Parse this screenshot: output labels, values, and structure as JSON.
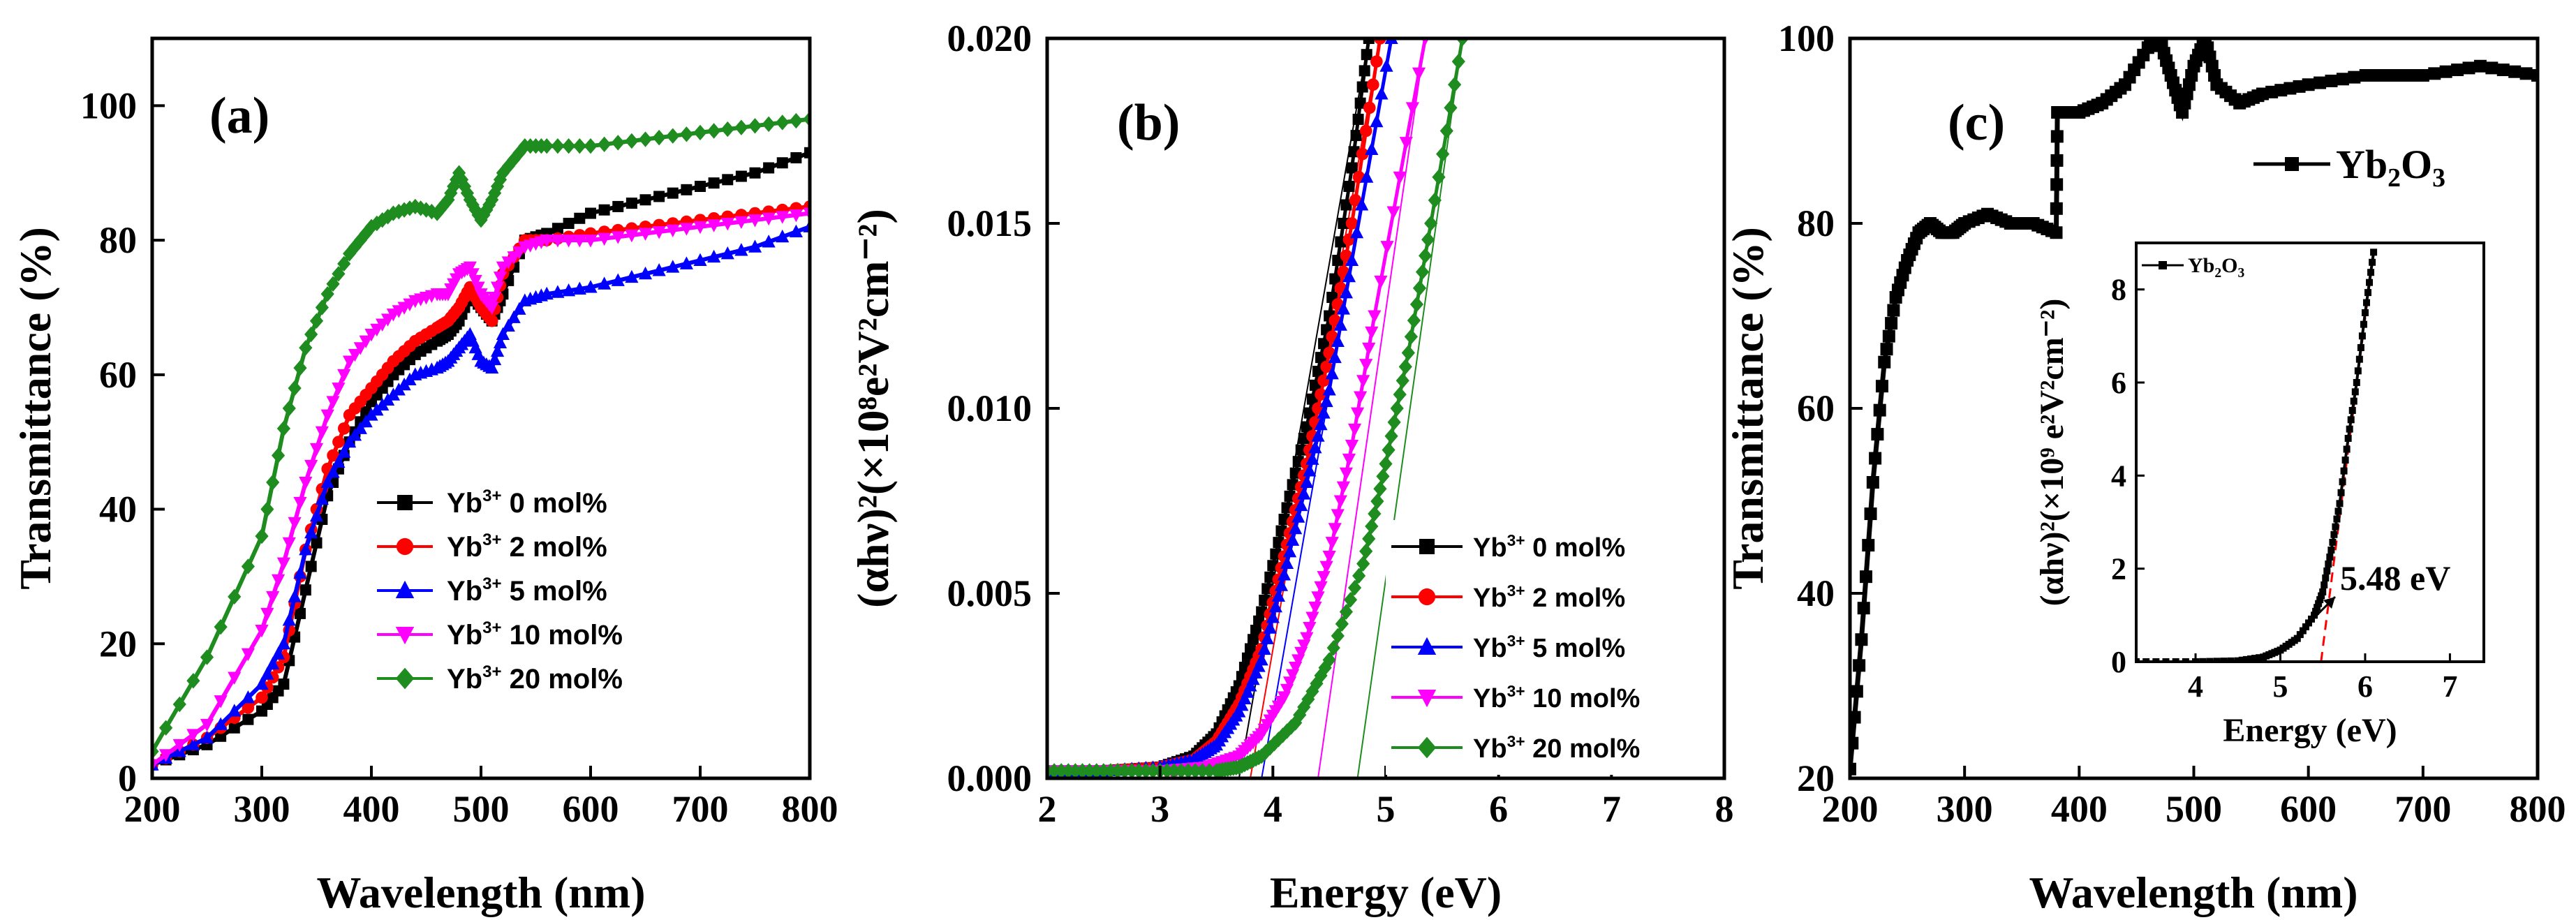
{
  "chart_data": [
    {
      "id": "a",
      "type": "line",
      "panel_label": "(a)",
      "xlabel": "Wavelength (nm)",
      "ylabel": "Transmittance (%)",
      "xlim": [
        200,
        800
      ],
      "ylim": [
        0,
        110
      ],
      "xticks": [
        200,
        300,
        400,
        500,
        600,
        700,
        800
      ],
      "yticks": [
        0,
        20,
        40,
        60,
        80,
        100
      ],
      "legend_position": "center-right",
      "series": [
        {
          "name": "0 mol%",
          "legend_label": "0 mol%",
          "ion": "Yb",
          "charge": "3+",
          "color": "#000000",
          "marker": "square",
          "x": [
            200,
            250,
            300,
            320,
            340,
            360,
            380,
            400,
            420,
            440,
            460,
            470,
            480,
            490,
            500,
            510,
            520,
            540,
            560,
            600,
            650,
            700,
            750,
            800
          ],
          "y": [
            2,
            5,
            10,
            14,
            28,
            42,
            50,
            56,
            60,
            63,
            65,
            66,
            68,
            72,
            70,
            68,
            72,
            80,
            81,
            84,
            86,
            88,
            90,
            93
          ]
        },
        {
          "name": "2 mol%",
          "legend_label": "2 mol%",
          "ion": "Yb",
          "charge": "3+",
          "color": "#ff0000",
          "marker": "circle",
          "x": [
            200,
            250,
            300,
            320,
            340,
            360,
            380,
            400,
            420,
            440,
            460,
            470,
            480,
            490,
            500,
            510,
            520,
            540,
            560,
            600,
            650,
            700,
            750,
            800
          ],
          "y": [
            2,
            6,
            12,
            18,
            34,
            46,
            54,
            58,
            62,
            65,
            67,
            68,
            70,
            73,
            70,
            68,
            75,
            80,
            80,
            81,
            82,
            83,
            84,
            85
          ]
        },
        {
          "name": "5 mol%",
          "legend_label": "5 mol%",
          "ion": "Yb",
          "charge": "3+",
          "color": "#0000ff",
          "marker": "triangle-up",
          "x": [
            200,
            250,
            300,
            320,
            340,
            360,
            380,
            400,
            420,
            440,
            460,
            470,
            480,
            490,
            500,
            510,
            520,
            540,
            560,
            600,
            650,
            700,
            750,
            800
          ],
          "y": [
            2,
            6,
            14,
            20,
            34,
            44,
            50,
            54,
            57,
            60,
            61,
            62,
            64,
            66,
            62,
            61,
            66,
            71,
            72,
            73,
            75,
            77,
            79,
            82
          ]
        },
        {
          "name": "10 mol%",
          "legend_label": "10 mol%",
          "ion": "Yb",
          "charge": "3+",
          "color": "#ff00ff",
          "marker": "triangle-down",
          "x": [
            200,
            250,
            300,
            320,
            340,
            360,
            380,
            400,
            420,
            440,
            460,
            470,
            480,
            490,
            500,
            510,
            520,
            540,
            560,
            600,
            650,
            700,
            750,
            800
          ],
          "y": [
            2,
            8,
            22,
            32,
            44,
            54,
            62,
            66,
            69,
            71,
            72,
            72,
            75,
            76,
            72,
            70,
            76,
            79,
            80,
            80,
            81,
            82,
            83,
            84
          ]
        },
        {
          "name": "20 mol%",
          "legend_label": "20 mol%",
          "ion": "Yb",
          "charge": "3+",
          "color": "#1e8c1e",
          "marker": "diamond",
          "x": [
            200,
            250,
            300,
            320,
            340,
            360,
            380,
            400,
            420,
            440,
            460,
            470,
            480,
            490,
            500,
            510,
            520,
            540,
            560,
            600,
            650,
            700,
            750,
            800
          ],
          "y": [
            4,
            18,
            36,
            52,
            64,
            72,
            78,
            82,
            84,
            85,
            84,
            86,
            90,
            86,
            83,
            86,
            90,
            94,
            94,
            94,
            95,
            96,
            97,
            98
          ]
        }
      ]
    },
    {
      "id": "b",
      "type": "line",
      "panel_label": "(b)",
      "xlabel": "Energy (eV)",
      "ylabel": "(αhν)²(×10⁸e²V²cm⁻²)",
      "xlim": [
        2,
        8
      ],
      "ylim": [
        0,
        0.02
      ],
      "xticks": [
        2,
        3,
        4,
        5,
        6,
        7,
        8
      ],
      "yticks": [
        "0.000",
        "0.005",
        "0.010",
        "0.015",
        "0.020"
      ],
      "legend_position": "bottom-right",
      "series": [
        {
          "name": "0 mol%",
          "legend_label": "0 mol%",
          "ion": "Yb",
          "charge": "3+",
          "color": "#000000",
          "marker": "square",
          "x": [
            2.0,
            2.5,
            3.0,
            3.3,
            3.5,
            3.7,
            3.9,
            4.1,
            4.3,
            4.5,
            4.7,
            4.85
          ],
          "y": [
            0.0002,
            0.0002,
            0.0003,
            0.0006,
            0.0012,
            0.0025,
            0.0045,
            0.007,
            0.0095,
            0.0125,
            0.0165,
            0.02
          ]
        },
        {
          "name": "2 mol%",
          "legend_label": "2 mol%",
          "ion": "Yb",
          "charge": "3+",
          "color": "#ff0000",
          "marker": "circle",
          "x": [
            2.0,
            2.5,
            3.0,
            3.3,
            3.5,
            3.7,
            3.9,
            4.1,
            4.3,
            4.5,
            4.7,
            4.95
          ],
          "y": [
            0.0002,
            0.0002,
            0.0003,
            0.0005,
            0.001,
            0.002,
            0.0035,
            0.006,
            0.0085,
            0.0115,
            0.015,
            0.02
          ]
        },
        {
          "name": "5 mol%",
          "legend_label": "5 mol%",
          "ion": "Yb",
          "charge": "3+",
          "color": "#0000ff",
          "marker": "triangle-up",
          "x": [
            2.0,
            2.5,
            3.0,
            3.3,
            3.5,
            3.7,
            3.9,
            4.1,
            4.3,
            4.5,
            4.7,
            5.05
          ],
          "y": [
            0.0002,
            0.0002,
            0.0003,
            0.0005,
            0.0009,
            0.0018,
            0.0032,
            0.0055,
            0.008,
            0.0105,
            0.014,
            0.02
          ]
        },
        {
          "name": "10 mol%",
          "legend_label": "10 mol%",
          "ion": "Yb",
          "charge": "3+",
          "color": "#ff00ff",
          "marker": "triangle-down",
          "x": [
            2.0,
            2.5,
            3.0,
            3.4,
            3.7,
            3.9,
            4.1,
            4.3,
            4.5,
            4.7,
            4.9,
            5.35
          ],
          "y": [
            0.0002,
            0.0002,
            0.0002,
            0.0003,
            0.0006,
            0.0012,
            0.0022,
            0.0038,
            0.006,
            0.009,
            0.0125,
            0.02
          ]
        },
        {
          "name": "20 mol%",
          "legend_label": "20 mol%",
          "ion": "Yb",
          "charge": "3+",
          "color": "#1e8c1e",
          "marker": "diamond",
          "x": [
            2.0,
            2.5,
            3.0,
            3.5,
            3.7,
            3.9,
            4.2,
            4.5,
            4.8,
            5.0,
            5.2,
            5.4,
            5.68
          ],
          "y": [
            0.0002,
            0.0002,
            0.0002,
            0.0002,
            0.0003,
            0.0006,
            0.0015,
            0.0032,
            0.0058,
            0.0085,
            0.0115,
            0.015,
            0.02
          ]
        }
      ],
      "tangent_lines": [
        {
          "color": "#000000",
          "x": [
            3.7,
            4.85
          ],
          "y": [
            0.0,
            0.02
          ]
        },
        {
          "color": "#ff0000",
          "x": [
            3.8,
            4.95
          ],
          "y": [
            0.0,
            0.02
          ]
        },
        {
          "color": "#0000ff",
          "x": [
            3.9,
            5.05
          ],
          "y": [
            0.0,
            0.02
          ]
        },
        {
          "color": "#ff00ff",
          "x": [
            4.4,
            5.35
          ],
          "y": [
            0.0,
            0.02
          ]
        },
        {
          "color": "#1e8c1e",
          "x": [
            4.75,
            5.68
          ],
          "y": [
            0.0,
            0.02
          ]
        }
      ]
    },
    {
      "id": "c",
      "type": "line",
      "panel_label": "(c)",
      "xlabel": "Wavelength (nm)",
      "ylabel": "Transmittance (%)",
      "xlim": [
        200,
        800
      ],
      "ylim": [
        20,
        100
      ],
      "xticks": [
        200,
        300,
        400,
        500,
        600,
        700,
        800
      ],
      "yticks": [
        20,
        40,
        60,
        80,
        100
      ],
      "legend_position": "top-right",
      "series": [
        {
          "name": "Yb2O3",
          "legend_base": "Yb",
          "legend_sub1": "2",
          "legend_mid": "O",
          "legend_sub2": "3",
          "color": "#000000",
          "marker": "square",
          "x": [
            200,
            210,
            220,
            230,
            240,
            250,
            260,
            270,
            280,
            290,
            300,
            320,
            340,
            360,
            380,
            381,
            400,
            420,
            440,
            460,
            470,
            480,
            490,
            500,
            510,
            520,
            540,
            560,
            600,
            650,
            700,
            750,
            800
          ],
          "y": [
            21,
            35,
            52,
            65,
            72,
            76,
            79,
            80,
            79,
            79,
            80,
            81,
            80,
            80,
            79,
            92,
            92,
            93,
            95,
            99,
            100,
            96,
            92,
            97,
            100,
            95,
            93,
            94,
            95,
            96,
            96,
            97,
            96
          ]
        }
      ],
      "inset": {
        "type": "line",
        "xlabel": "Energy (eV)",
        "ylabel": "(αhν)²(×10⁹ e²V²cm⁻²)",
        "xlim": [
          3.3,
          7.4
        ],
        "ylim": [
          0,
          9
        ],
        "xticks": [
          4,
          5,
          6,
          7
        ],
        "yticks": [
          0,
          2,
          4,
          6,
          8
        ],
        "series": [
          {
            "name": "Yb2O3",
            "color": "#000000",
            "marker": "square",
            "x": [
              3.3,
              4.0,
              4.5,
              4.8,
              5.0,
              5.2,
              5.4,
              5.5,
              5.6,
              5.7,
              5.8,
              5.9,
              6.0,
              6.1
            ],
            "y": [
              0,
              0,
              0.02,
              0.1,
              0.25,
              0.5,
              1.0,
              1.5,
              2.4,
              3.4,
              4.8,
              6.0,
              7.5,
              8.8
            ]
          }
        ],
        "tangent": {
          "color": "#ff0000",
          "x": [
            5.48,
            6.1
          ],
          "y": [
            0,
            8.8
          ]
        },
        "annotation": "5.48 eV"
      }
    }
  ]
}
